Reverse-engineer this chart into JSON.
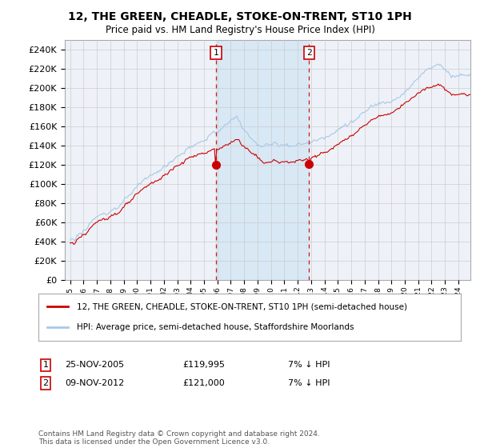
{
  "title": "12, THE GREEN, CHEADLE, STOKE-ON-TRENT, ST10 1PH",
  "subtitle": "Price paid vs. HM Land Registry's House Price Index (HPI)",
  "ylim": [
    0,
    250000
  ],
  "yticks": [
    0,
    20000,
    40000,
    60000,
    80000,
    100000,
    120000,
    140000,
    160000,
    180000,
    200000,
    220000,
    240000
  ],
  "sale1_price": 119995,
  "sale1_x": 2005.9,
  "sale2_price": 121000,
  "sale2_x": 2012.85,
  "hpi_color": "#a8c8e8",
  "sale_color": "#cc0000",
  "bg_color": "#eef2f8",
  "shade_color": "#d8e8f5",
  "grid_color": "#cccccc",
  "legend_line1": "12, THE GREEN, CHEADLE, STOKE-ON-TRENT, ST10 1PH (semi-detached house)",
  "legend_line2": "HPI: Average price, semi-detached house, Staffordshire Moorlands",
  "footnote": "Contains HM Land Registry data © Crown copyright and database right 2024.\nThis data is licensed under the Open Government Licence v3.0."
}
